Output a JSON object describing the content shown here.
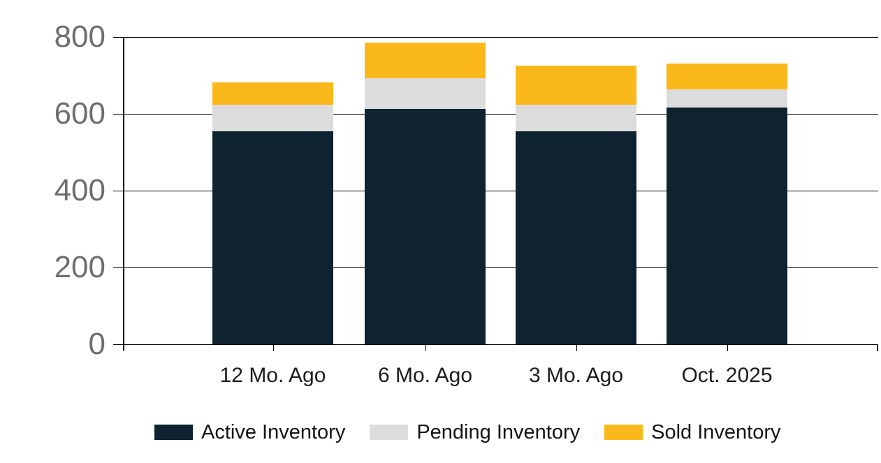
{
  "chart_data": {
    "type": "bar",
    "stacked": true,
    "title": "",
    "xlabel": "",
    "ylabel": "",
    "categories": [
      "12 Mo. Ago",
      "6 Mo. Ago",
      "3 Mo. Ago",
      "Oct. 2025"
    ],
    "series": [
      {
        "name": "Active Inventory",
        "color": "#0e2230",
        "values": [
          555,
          612,
          555,
          616
        ]
      },
      {
        "name": "Pending Inventory",
        "color": "#dcdcdc",
        "values": [
          69,
          81,
          69,
          48
        ]
      },
      {
        "name": "Sold Inventory",
        "color": "#fbb81a",
        "values": [
          58,
          93,
          101,
          67
        ]
      }
    ],
    "stack_totals": [
      682,
      786,
      725,
      731
    ],
    "ylim": [
      0,
      800
    ],
    "yticks": [
      0,
      200,
      400,
      600,
      800
    ],
    "ytick_labels": [
      "0",
      "200",
      "400",
      "600",
      "800"
    ],
    "grid": true,
    "legend_position": "bottom"
  },
  "palette": {
    "background": "#ffffff",
    "grid_line": "#000000",
    "axis_line": "#000000",
    "y_tick_text": "#6e6e6e",
    "x_tick_text": "#1c1c1c",
    "legend_text": "#141414"
  }
}
